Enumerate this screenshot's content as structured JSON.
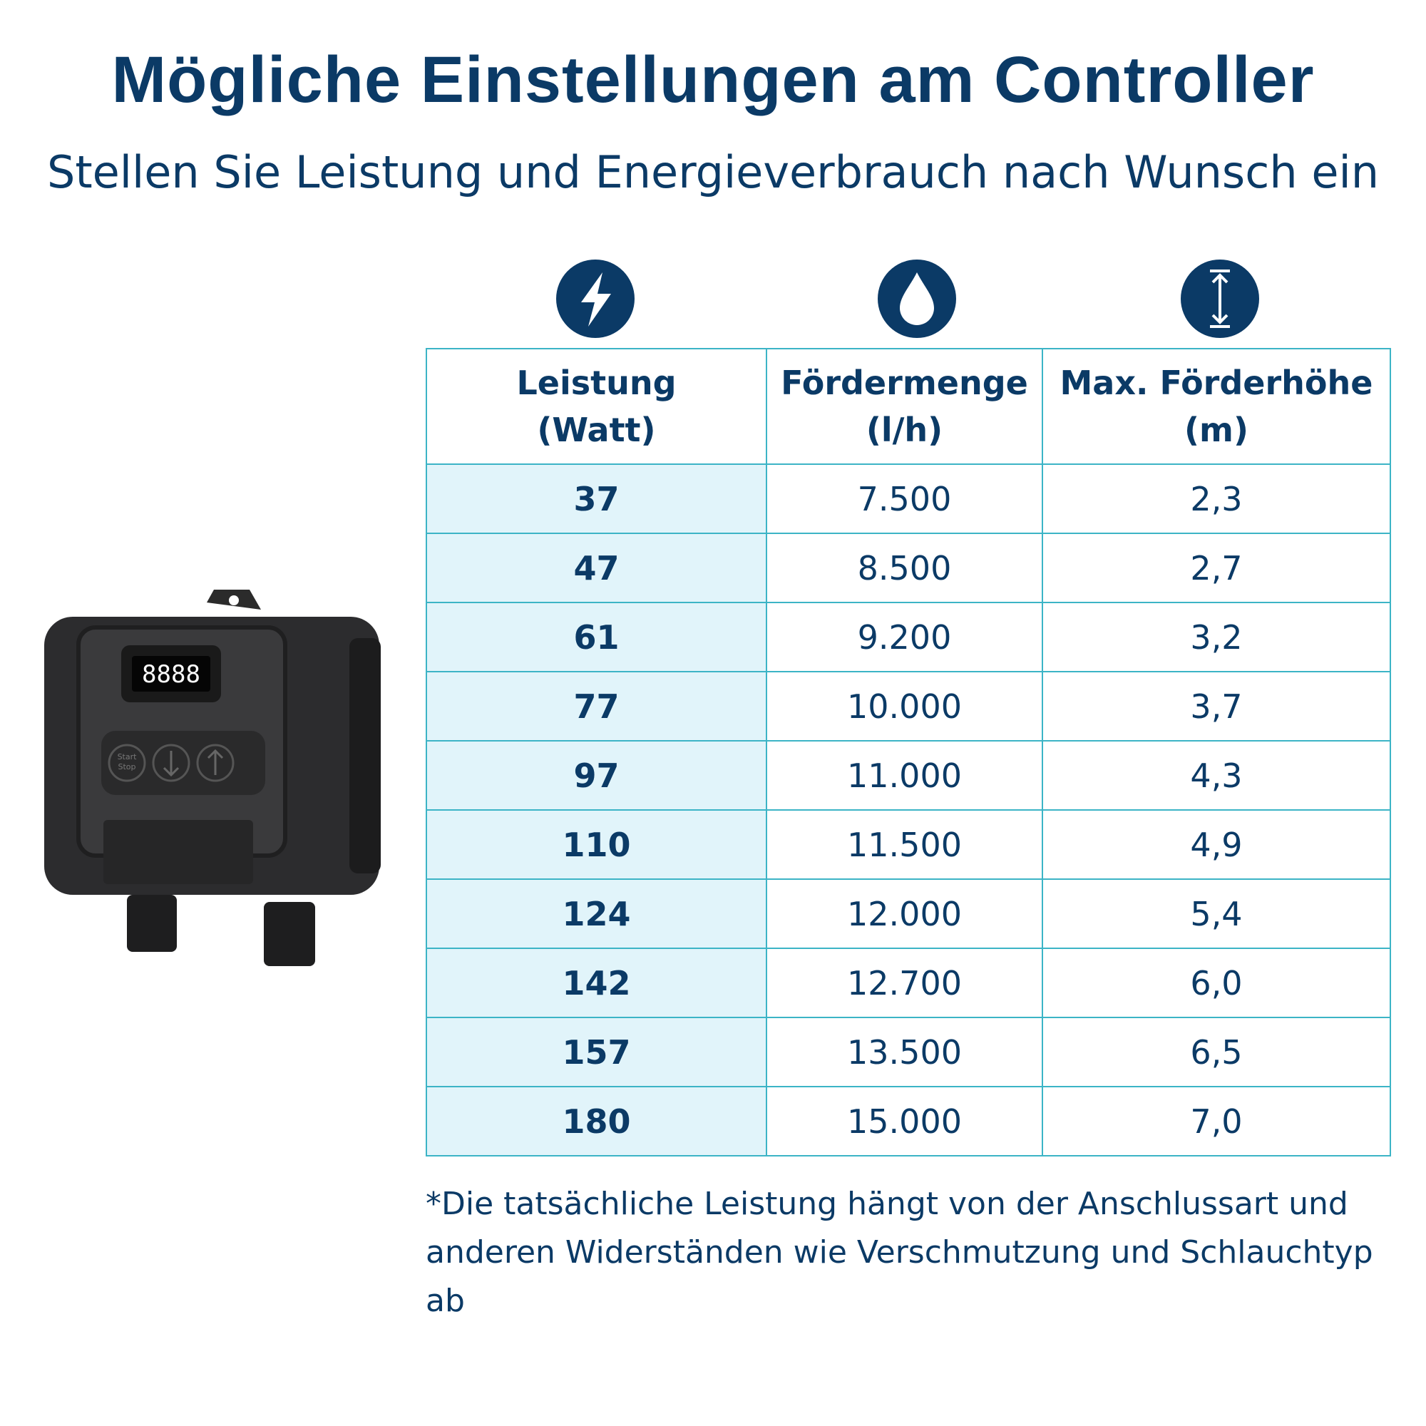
{
  "header": {
    "title": "Mögliche Einstellungen am Controller",
    "subtitle": "Stellen Sie Leistung und Energieverbrauch nach Wunsch ein"
  },
  "device": {
    "display": "8888",
    "button_start": "Start",
    "button_stop": "Stop"
  },
  "table": {
    "headers": [
      [
        "Leistung",
        "(Watt)"
      ],
      [
        "Fördermenge",
        "(l/h)"
      ],
      [
        "Max. Förderhöhe",
        "(m)"
      ]
    ],
    "rows": [
      [
        "37",
        "7.500",
        "2,3"
      ],
      [
        "47",
        "8.500",
        "2,7"
      ],
      [
        "61",
        "9.200",
        "3,2"
      ],
      [
        "77",
        "10.000",
        "3,7"
      ],
      [
        "97",
        "11.000",
        "4,3"
      ],
      [
        "110",
        "11.500",
        "4,9"
      ],
      [
        "124",
        "12.000",
        "5,4"
      ],
      [
        "142",
        "12.700",
        "6,0"
      ],
      [
        "157",
        "13.500",
        "6,5"
      ],
      [
        "180",
        "15.000",
        "7,0"
      ]
    ]
  },
  "footnote": "*Die tatsächliche Leistung hängt von der Anschlussart und anderen Widerständen wie Verschmutzung und Schlauchtyp ab"
}
